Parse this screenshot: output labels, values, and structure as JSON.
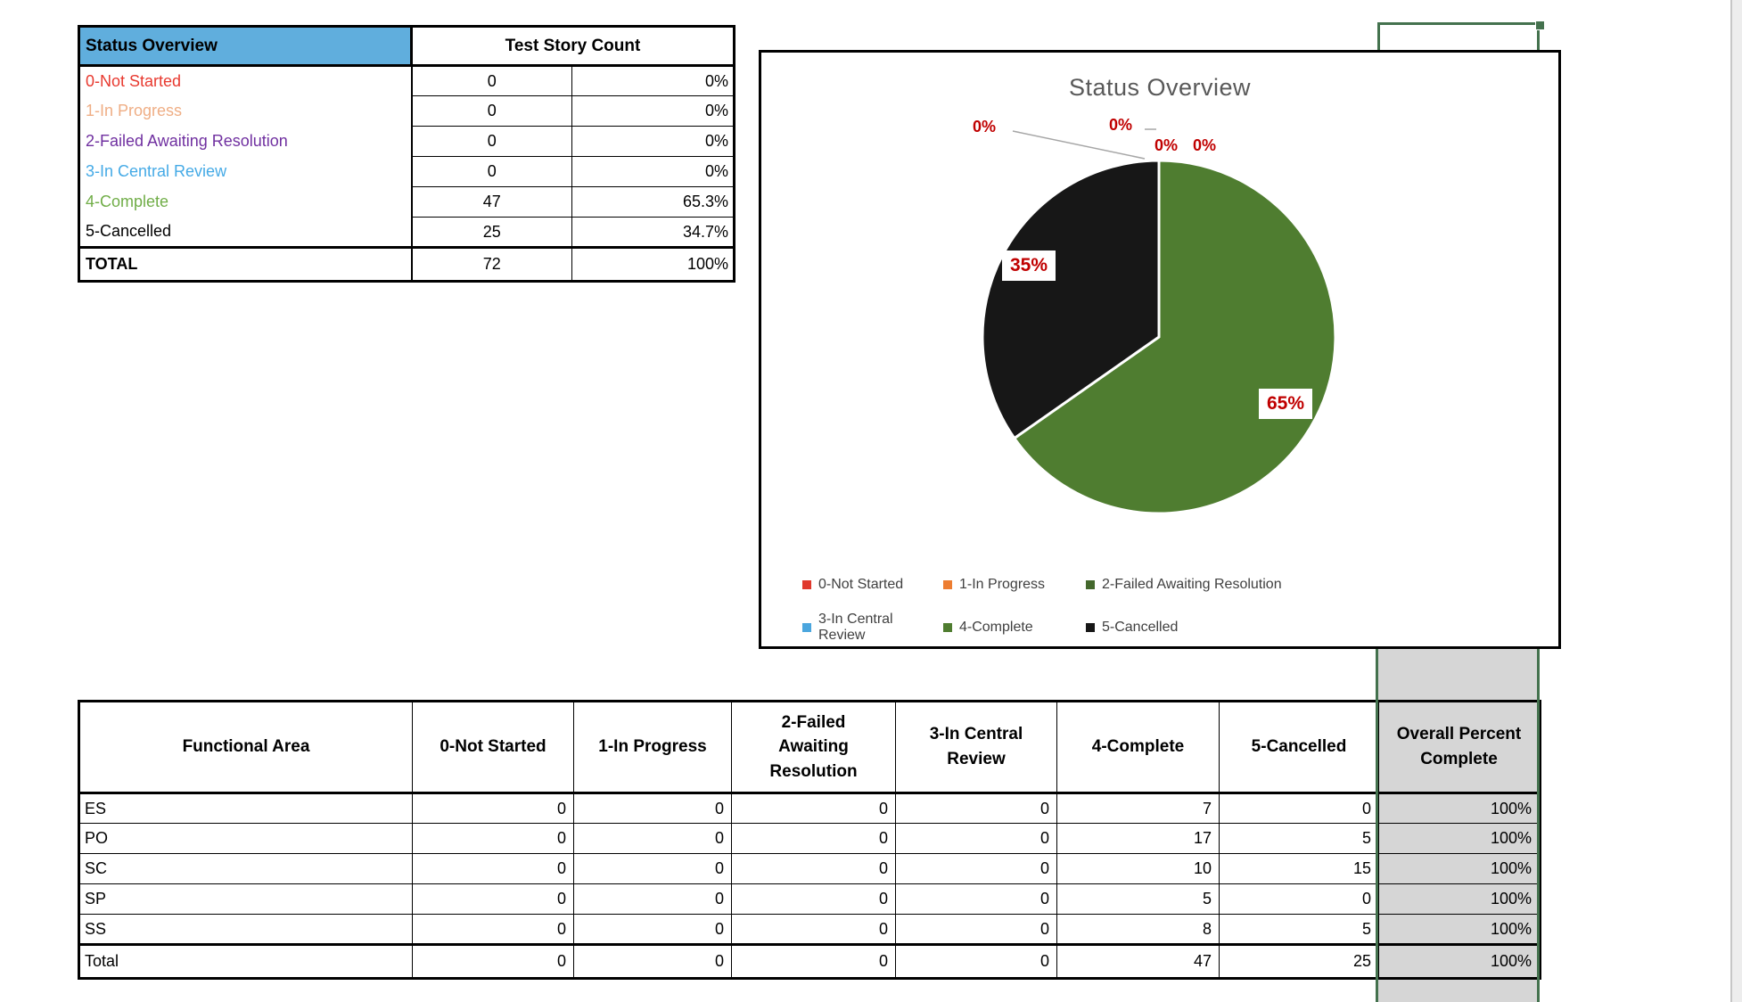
{
  "top_table": {
    "header_label": "Status Overview",
    "header_count": "Test Story Count",
    "header_fill": "#60AEDD",
    "rows": [
      {
        "label": "0-Not Started",
        "color": "#E8392F",
        "count": "0",
        "pct": "0%"
      },
      {
        "label": "1-In Progress",
        "color": "#EFAE85",
        "count": "0",
        "pct": "0%"
      },
      {
        "label": "2-Failed Awaiting Resolution",
        "color": "#7030A0",
        "count": "0",
        "pct": "0%"
      },
      {
        "label": "3-In Central Review",
        "color": "#45AAE6",
        "count": "0",
        "pct": "0%"
      },
      {
        "label": "4-Complete",
        "color": "#70AD47",
        "count": "47",
        "pct": "65.3%"
      },
      {
        "label": "5-Cancelled",
        "color": "#000000",
        "count": "25",
        "pct": "34.7%"
      }
    ],
    "total": {
      "label": "TOTAL",
      "count": "72",
      "pct": "100%"
    }
  },
  "chart": {
    "title": "Status Overview",
    "title_color": "#595959",
    "zero_label": "0%",
    "label_35": "35%",
    "label_65": "65%",
    "data_label_color": "#C00000",
    "leader_line_color": "#A6A6A6",
    "legend": [
      {
        "label": "0-Not Started",
        "color": "#E0392D"
      },
      {
        "label": "1-In Progress",
        "color": "#ED7D31"
      },
      {
        "label": "2-Failed Awaiting Resolution",
        "color": "#44682D"
      },
      {
        "label": "3-In Central Review",
        "color": "#4BA6DE"
      },
      {
        "label": "4-Complete",
        "color": "#4F7D30"
      },
      {
        "label": "5-Cancelled",
        "color": "#171717"
      }
    ]
  },
  "chart_data": {
    "type": "pie",
    "title": "Status Overview",
    "categories": [
      "0-Not Started",
      "1-In Progress",
      "2-Failed Awaiting Resolution",
      "3-In Central Review",
      "4-Complete",
      "5-Cancelled"
    ],
    "values": [
      0,
      0,
      0,
      0,
      47,
      25
    ],
    "percent_labels": [
      "0%",
      "0%",
      "0%",
      "0%",
      "65%",
      "35%"
    ],
    "slice_colors": [
      "#E0392D",
      "#ED7D31",
      "#44682D",
      "#4BA6DE",
      "#4F7D30",
      "#171717"
    ],
    "separator_color": "#FFFFFF",
    "start_angle_deg": 0,
    "direction": "clockwise",
    "legend_position": "bottom"
  },
  "bottom_table": {
    "headers": [
      "Functional Area",
      "0-Not Started",
      "1-In Progress",
      "2-Failed Awaiting Resolution",
      "3-In Central Review",
      "4-Complete",
      "5-Cancelled",
      "Overall Percent Complete"
    ],
    "rows": [
      {
        "area": "ES",
        "values": [
          "0",
          "0",
          "0",
          "0",
          "7",
          "0"
        ],
        "overall": "100%"
      },
      {
        "area": "PO",
        "values": [
          "0",
          "0",
          "0",
          "0",
          "17",
          "5"
        ],
        "overall": "100%"
      },
      {
        "area": "SC",
        "values": [
          "0",
          "0",
          "0",
          "0",
          "10",
          "15"
        ],
        "overall": "100%"
      },
      {
        "area": "SP",
        "values": [
          "0",
          "0",
          "0",
          "0",
          "5",
          "0"
        ],
        "overall": "100%"
      },
      {
        "area": "SS",
        "values": [
          "0",
          "0",
          "0",
          "0",
          "8",
          "5"
        ],
        "overall": "100%"
      }
    ],
    "total": {
      "area": "Total",
      "values": [
        "0",
        "0",
        "0",
        "0",
        "47",
        "25"
      ],
      "overall": "100%"
    },
    "selected_column_fill": "#D6D6D6",
    "selection_border_color": "#44724E"
  }
}
